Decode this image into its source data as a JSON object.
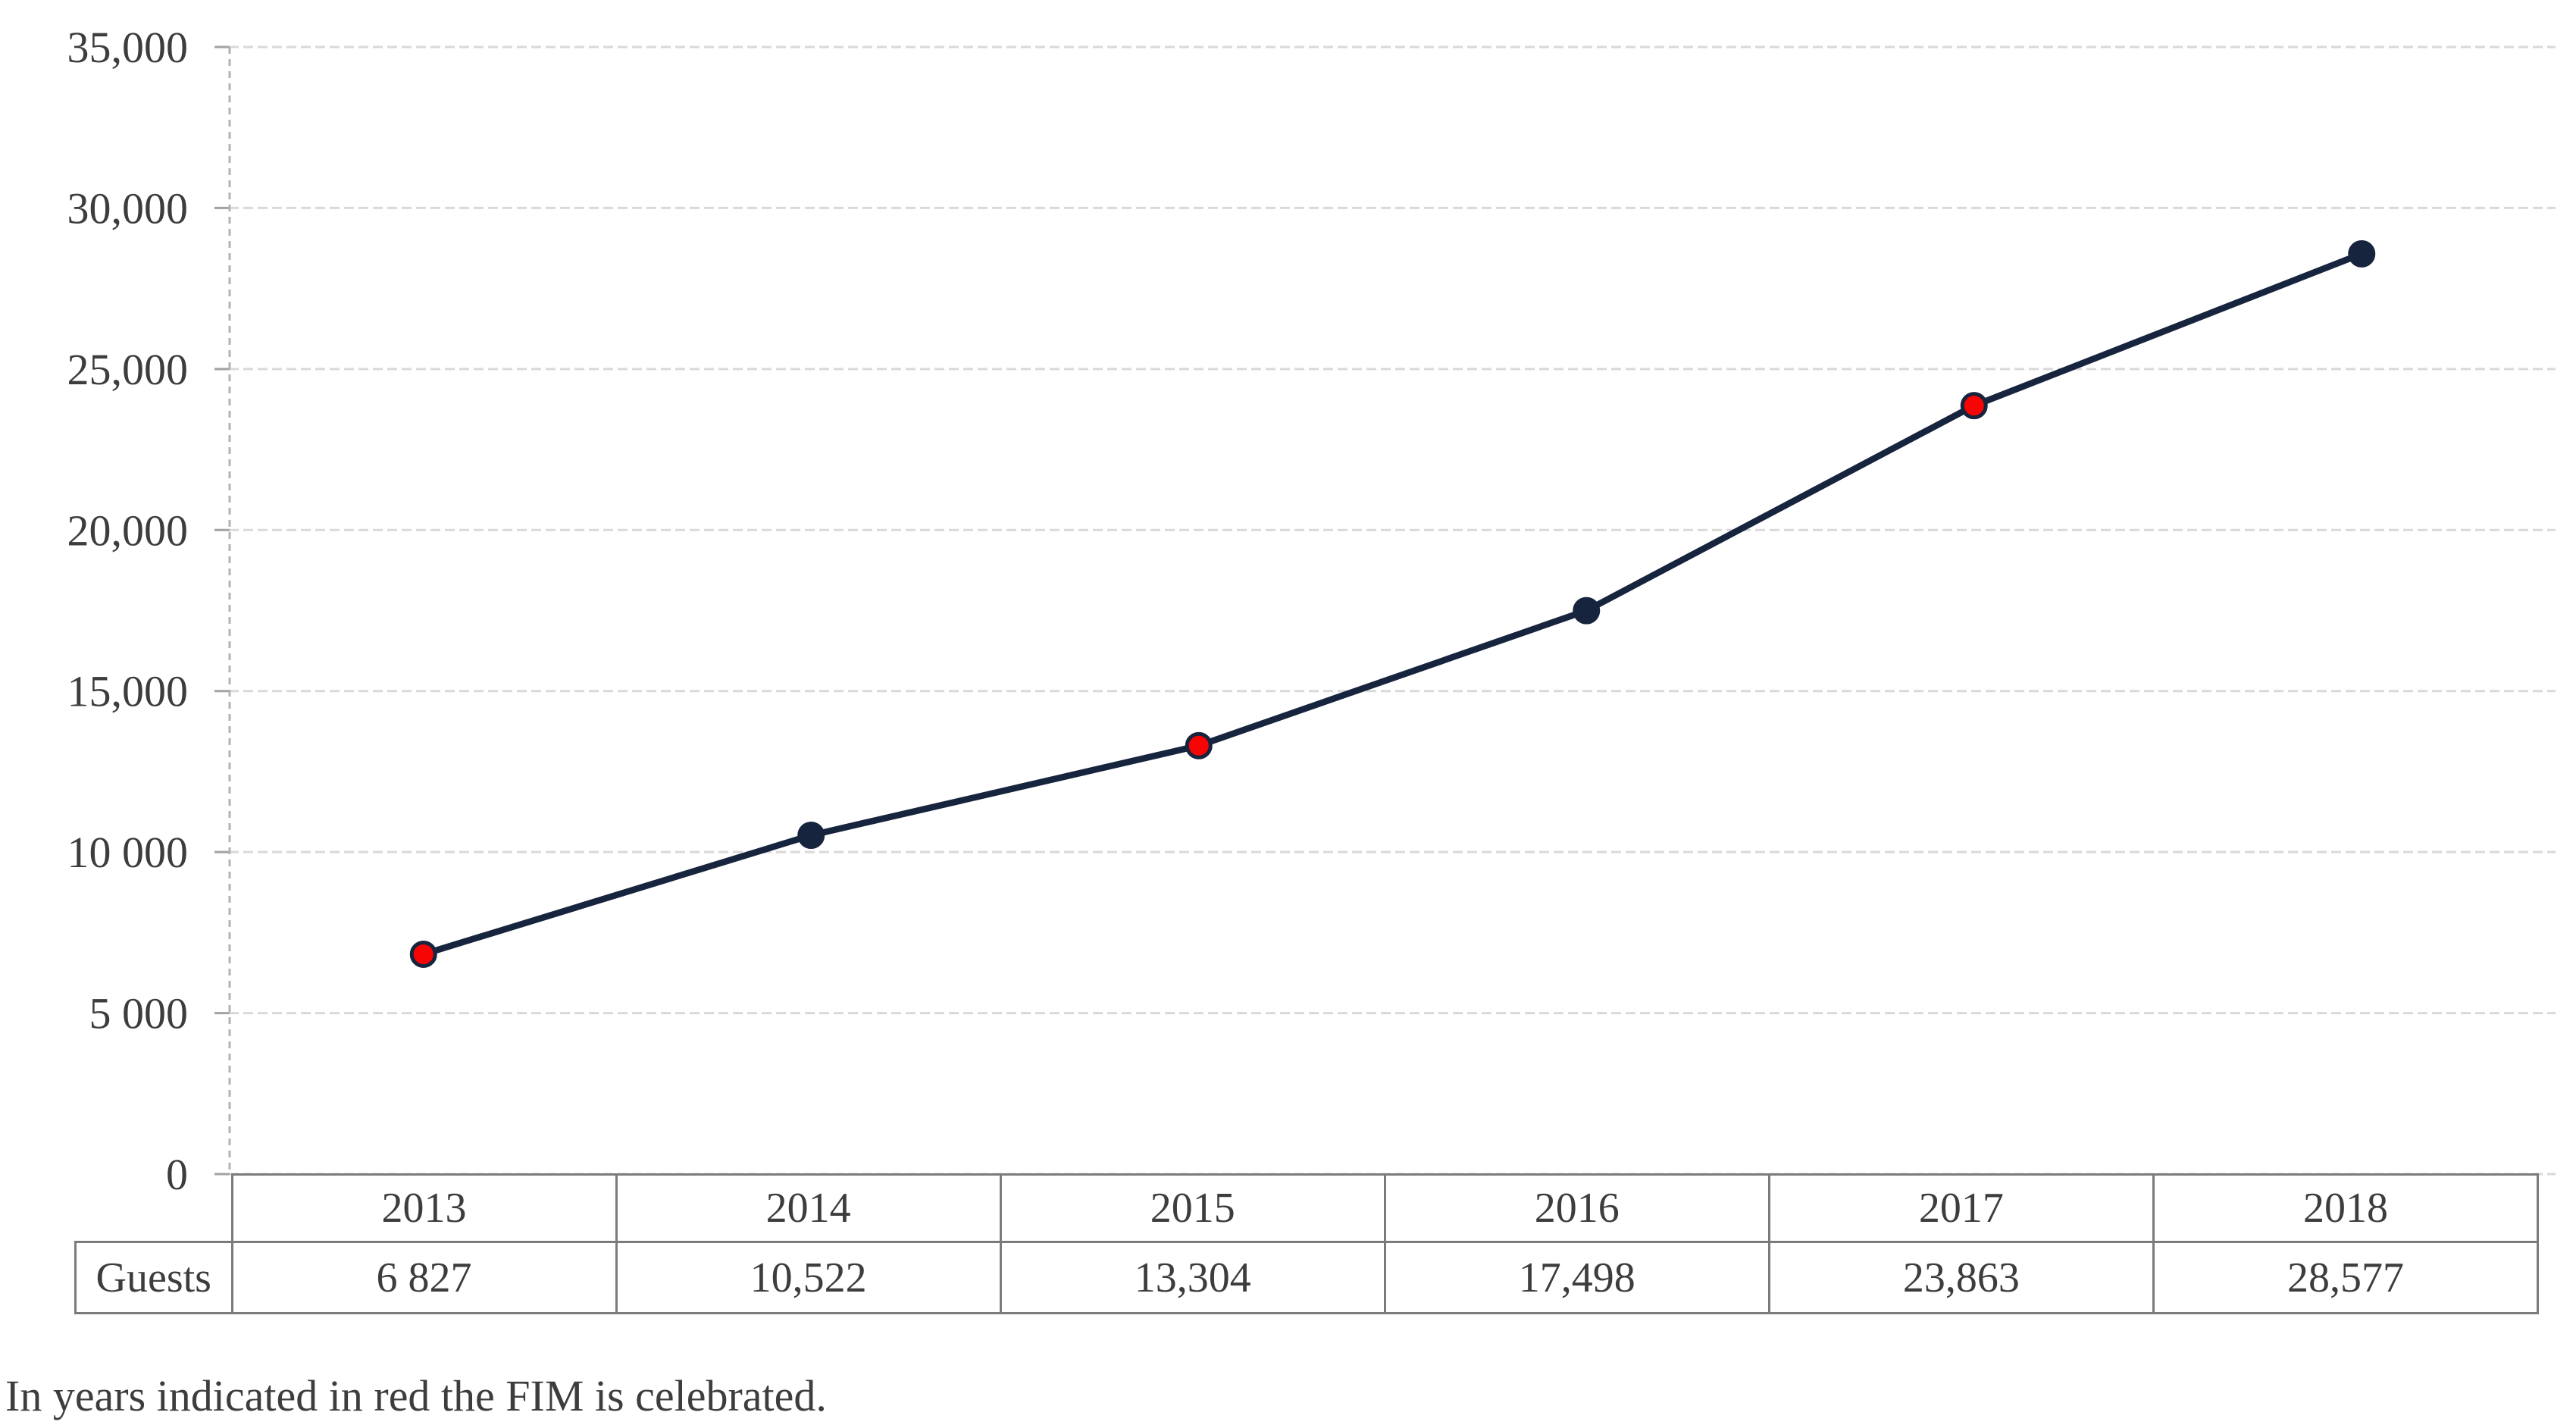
{
  "chart_data": {
    "type": "line",
    "title": "",
    "xlabel": "",
    "ylabel": "",
    "x": [
      "2013",
      "2014",
      "2015",
      "2016",
      "2017",
      "2018"
    ],
    "series": [
      {
        "name": "Guests",
        "values": [
          6827,
          10522,
          13304,
          17498,
          23863,
          28577
        ]
      }
    ],
    "ylim": [
      0,
      35000
    ],
    "ytick_step": 5000,
    "ytick_labels": [
      "0",
      "5 000",
      "10 000",
      "15,000",
      "20,000",
      "25,000",
      "30,000",
      "35,000"
    ],
    "grid": "horizontal dashed gridlines, dashed vertical y-axis line",
    "legend_position": "none",
    "red_marker_years": [
      "2013",
      "2015",
      "2017"
    ],
    "marker_colors": [
      "#f70505",
      "#17243e",
      "#f70505",
      "#17243e",
      "#f70505",
      "#17243e"
    ]
  },
  "table": {
    "row_label": "Guests",
    "years": [
      "2013",
      "2014",
      "2015",
      "2016",
      "2017",
      "2018"
    ],
    "values": [
      "6 827",
      "10,522",
      "13,304",
      "17,498",
      "23,863",
      "28,577"
    ]
  },
  "caption": "In years indicated in red the FIM is celebrated.",
  "colors": {
    "line": "#17243e",
    "marker_navy": "#17243e",
    "marker_red": "#f70505",
    "gridline": "#d9d9d9",
    "axis_dash": "#b3b3b3",
    "tick": "#a3a3a3",
    "table_border": "#7b7b7b",
    "text": "#3d3d3d"
  }
}
